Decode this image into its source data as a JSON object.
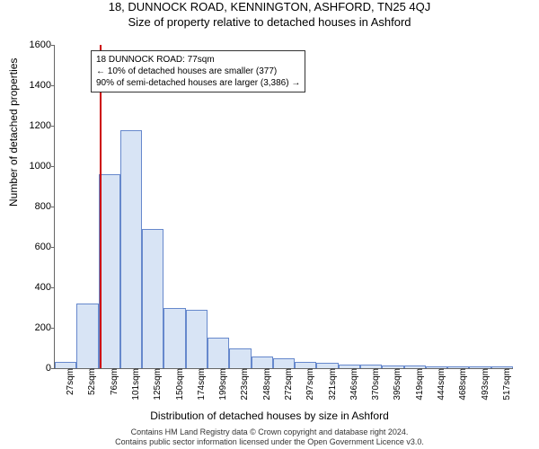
{
  "title": "18, DUNNOCK ROAD, KENNINGTON, ASHFORD, TN25 4QJ",
  "subtitle": "Size of property relative to detached houses in Ashford",
  "ylabel": "Number of detached properties",
  "xlabel": "Distribution of detached houses by size in Ashford",
  "footer1": "Contains HM Land Registry data © Crown copyright and database right 2024.",
  "footer2": "Contains public sector information licensed under the Open Government Licence v3.0.",
  "chart": {
    "type": "histogram",
    "ylim": [
      0,
      1600
    ],
    "ytick_step": 200,
    "x_start": 27,
    "x_step": 24.5,
    "x_unit": "sqm",
    "x_count": 21,
    "bar_fill": "#d8e4f5",
    "bar_stroke": "#6688cc",
    "marker_color": "#cc0000",
    "marker_x": 77,
    "values": [
      30,
      320,
      960,
      1180,
      690,
      300,
      290,
      150,
      100,
      60,
      50,
      30,
      25,
      20,
      18,
      12,
      15,
      10,
      8,
      10,
      8
    ]
  },
  "annotation": {
    "line1": "18 DUNNOCK ROAD: 77sqm",
    "line2": "← 10% of detached houses are smaller (377)",
    "line3": "90% of semi-detached houses are larger (3,386) →"
  }
}
